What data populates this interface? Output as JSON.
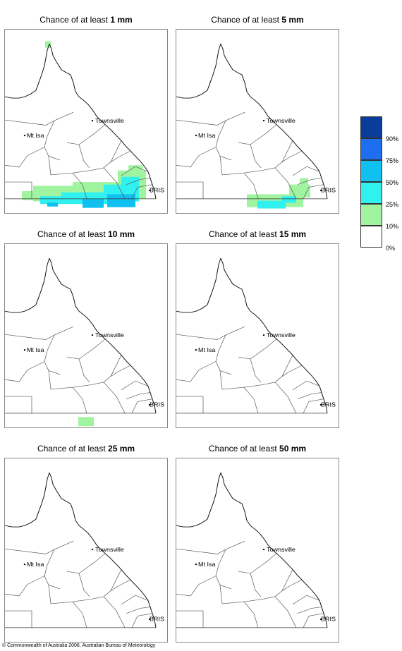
{
  "panels": [
    {
      "title_prefix": "Chance of at least ",
      "threshold": "1 mm"
    },
    {
      "title_prefix": "Chance of at least ",
      "threshold": "5 mm"
    },
    {
      "title_prefix": "Chance of at least ",
      "threshold": "10 mm"
    },
    {
      "title_prefix": "Chance of at least ",
      "threshold": "15 mm"
    },
    {
      "title_prefix": "Chance of at least ",
      "threshold": "25 mm"
    },
    {
      "title_prefix": "Chance of at least ",
      "threshold": "50 mm"
    }
  ],
  "places": {
    "townsville": "Townsville",
    "mt_isa": "Mt Isa",
    "brisbane": "BRIS"
  },
  "legend": {
    "labels": [
      "90%",
      "75%",
      "50%",
      "25%",
      "10%",
      "0%"
    ],
    "colors": [
      "#0a3c9a",
      "#1e6ff0",
      "#10c0f0",
      "#30f0f0",
      "#a0f4a0",
      "#ffffff"
    ]
  },
  "footer": "© Commonwealth of Australia 2006, Australian Bureau of Meteorology"
}
